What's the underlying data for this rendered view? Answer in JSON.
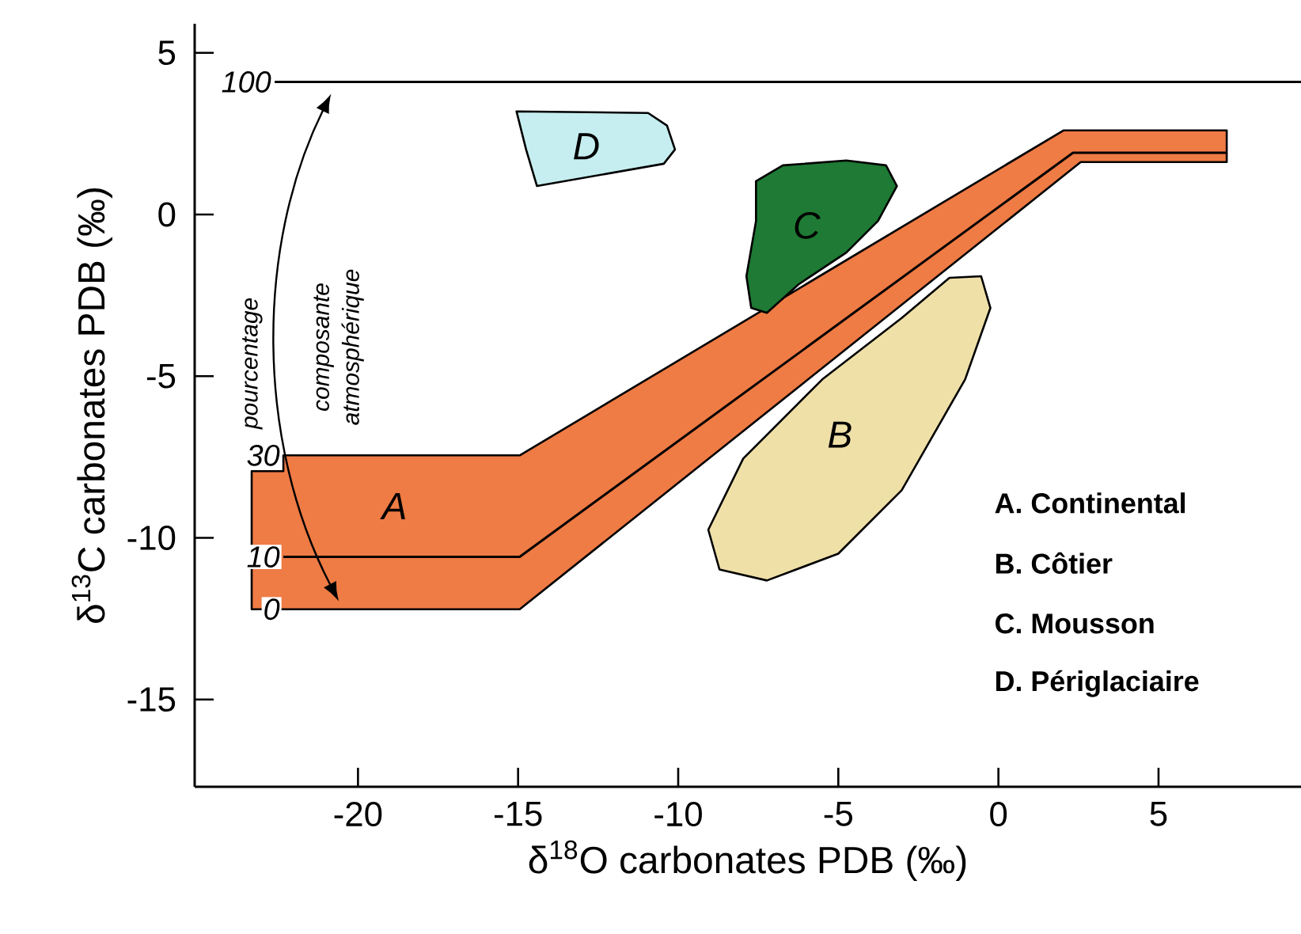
{
  "chart_data": {
    "type": "area",
    "xlabel": "δ$^{18}$O carbonates PDB (‰)",
    "ylabel": "δ$^{13}$C carbonates PDB (‰)",
    "xlim": [
      -25.1,
      9.45
    ],
    "ylim": [
      -17.7,
      5.9
    ],
    "xticks": [
      -20,
      -15,
      -10,
      -5,
      0,
      5
    ],
    "yticks": [
      -15,
      -10,
      -5,
      0,
      5
    ],
    "grid": false,
    "series": [
      {
        "type": "area",
        "color": "#efe0a8",
        "x": [
          -0.54,
          -0.25,
          -1.04,
          -3.02,
          -5.0,
          -7.23,
          -8.71,
          -9.06,
          -7.97,
          -5.5,
          -3.02,
          -1.53
        ],
        "values": [
          -1.91,
          -2.89,
          -5.1,
          -8.53,
          -10.49,
          -11.32,
          -10.98,
          -9.75,
          -7.55,
          -5.1,
          -3.2,
          -1.96
        ]
      },
      {
        "type": "area",
        "color": "#ef7b45",
        "x": [
          -23.32,
          -22.33,
          -22.33,
          -14.95,
          2.03,
          7.13,
          7.13,
          2.57,
          -14.95,
          -23.32
        ],
        "values": [
          -7.94,
          -7.94,
          -7.45,
          -7.45,
          2.6,
          2.6,
          1.62,
          1.62,
          -12.21,
          -12.21
        ]
      },
      {
        "type": "area",
        "color": "#1e7a34",
        "x": [
          -4.75,
          -3.51,
          -3.17,
          -3.76,
          -4.75,
          -6.24,
          -7.23,
          -7.72,
          -7.87,
          -7.57,
          -7.57,
          -6.73
        ],
        "values": [
          1.67,
          1.52,
          0.88,
          -0.2,
          -1.18,
          -2.16,
          -3.04,
          -2.89,
          -1.91,
          -0.2,
          1.03,
          1.52
        ]
      },
      {
        "type": "area",
        "color": "#c6eef0",
        "x": [
          -15.05,
          -10.94,
          -10.35,
          -10.1,
          -10.45,
          -14.41,
          -14.75
        ],
        "values": [
          3.19,
          3.14,
          2.75,
          2.01,
          1.57,
          0.88,
          2.01
        ]
      },
      {
        "type": "line",
        "color": "#000000",
        "x": [
          -22.6,
          9.45
        ],
        "values": [
          4.1,
          4.1
        ]
      },
      {
        "type": "line",
        "color": "#000000",
        "x": [
          -22.33,
          -14.95,
          2.33,
          7.13
        ],
        "values": [
          -10.59,
          -10.59,
          1.91,
          1.91
        ]
      }
    ],
    "annotations": [
      "A",
      "B",
      "C",
      "D",
      "100",
      "30",
      "10",
      "0",
      "pourcentage",
      "composante atmosphérique",
      "A. Continental",
      "B. Côtier",
      "C. Mousson",
      "D. Périglaciaire"
    ]
  }
}
